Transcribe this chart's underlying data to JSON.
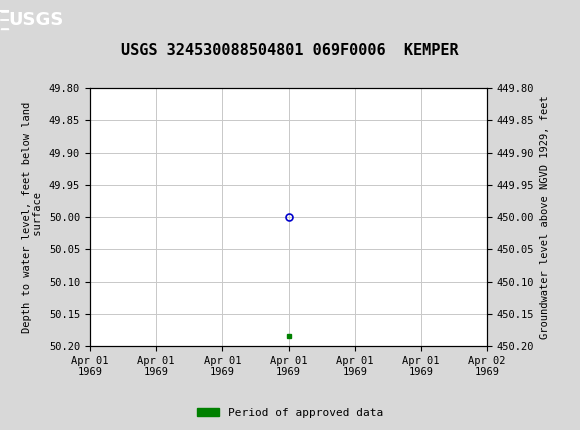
{
  "title": "USGS 324530088504801 069F0006  KEMPER",
  "header_bg_color": "#1a6b3c",
  "plot_bg_color": "#ffffff",
  "fig_bg_color": "#d8d8d8",
  "ylabel_left": "Depth to water level, feet below land\n surface",
  "ylabel_right": "Groundwater level above NGVD 1929, feet",
  "ylim_left": [
    49.8,
    50.2
  ],
  "ylim_right": [
    449.8,
    450.2
  ],
  "y_ticks_left": [
    49.8,
    49.85,
    49.9,
    49.95,
    50.0,
    50.05,
    50.1,
    50.15,
    50.2
  ],
  "y_ticks_right": [
    449.8,
    449.85,
    449.9,
    449.95,
    450.0,
    450.05,
    450.1,
    450.15,
    450.2
  ],
  "x_tick_labels": [
    "Apr 01\n1969",
    "Apr 01\n1969",
    "Apr 01\n1969",
    "Apr 01\n1969",
    "Apr 01\n1969",
    "Apr 01\n1969",
    "Apr 02\n1969"
  ],
  "data_point_x": 3.0,
  "data_point_y": 50.0,
  "data_point_color": "#0000cd",
  "data_point_marker_size": 5,
  "green_marker_x": 3.0,
  "green_marker_y": 50.185,
  "green_color": "#008000",
  "grid_color": "#c8c8c8",
  "tick_label_fontsize": 7.5,
  "title_fontsize": 11,
  "ylabel_fontsize": 7.5,
  "legend_label": "Period of approved data",
  "n_xticks": 7,
  "x_range": [
    0,
    6
  ]
}
